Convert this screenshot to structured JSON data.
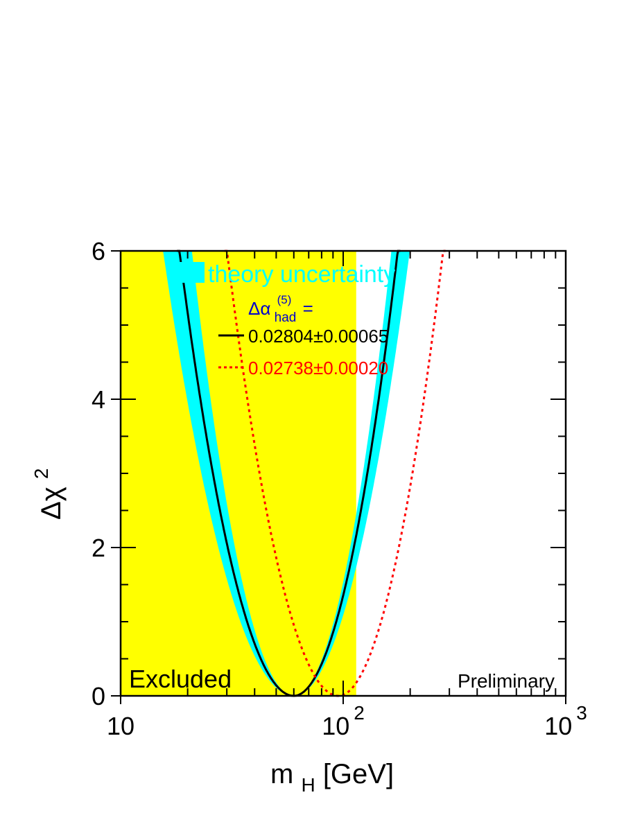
{
  "chart_data": {
    "type": "line",
    "xscale": "log",
    "xlim": [
      10,
      1000
    ],
    "ylim": [
      0,
      6
    ],
    "x_ticks": [
      {
        "base": "10",
        "exp": ""
      },
      {
        "base": "10",
        "exp": "2"
      },
      {
        "base": "10",
        "exp": "3"
      }
    ],
    "y_ticks": [
      "0",
      "2",
      "4",
      "6"
    ],
    "y_tick_values": [
      0,
      2,
      4,
      6
    ],
    "xlabel": {
      "main": "m",
      "sub": "H",
      "unit": " [GeV]"
    },
    "ylabel": {
      "main": "Δχ",
      "sup": "2"
    },
    "excluded_region": {
      "from": 10,
      "to": 114.4,
      "label": "Excluded",
      "color": "#ffff00"
    },
    "corner_label": "Preliminary",
    "legend": {
      "band_label": "theory uncertainty",
      "alpha_main": "Δα",
      "alpha_sup": "(5)",
      "alpha_sub": "had",
      "alpha_eq": " =",
      "series_labels": [
        "0.02804±0.00065",
        "0.02738±0.00020"
      ]
    },
    "colors": {
      "band": "#00ffff",
      "black_line": "#000000",
      "red_line": "#ff0000",
      "legend_alpha": "#0000cc"
    },
    "band": {
      "min_x": 60,
      "left_scale": 21.2,
      "right_scale": 26.0,
      "half_width_x": 0.04
    },
    "series": [
      {
        "name": "0.02804±0.00065",
        "min_x": 60,
        "left_scale": 22.7,
        "right_scale": 27.5,
        "style": "solid"
      },
      {
        "name": "0.02738±0.00020",
        "min_x": 95,
        "left_scale": 24.0,
        "right_scale": 27.0,
        "style": "dotted"
      }
    ]
  }
}
